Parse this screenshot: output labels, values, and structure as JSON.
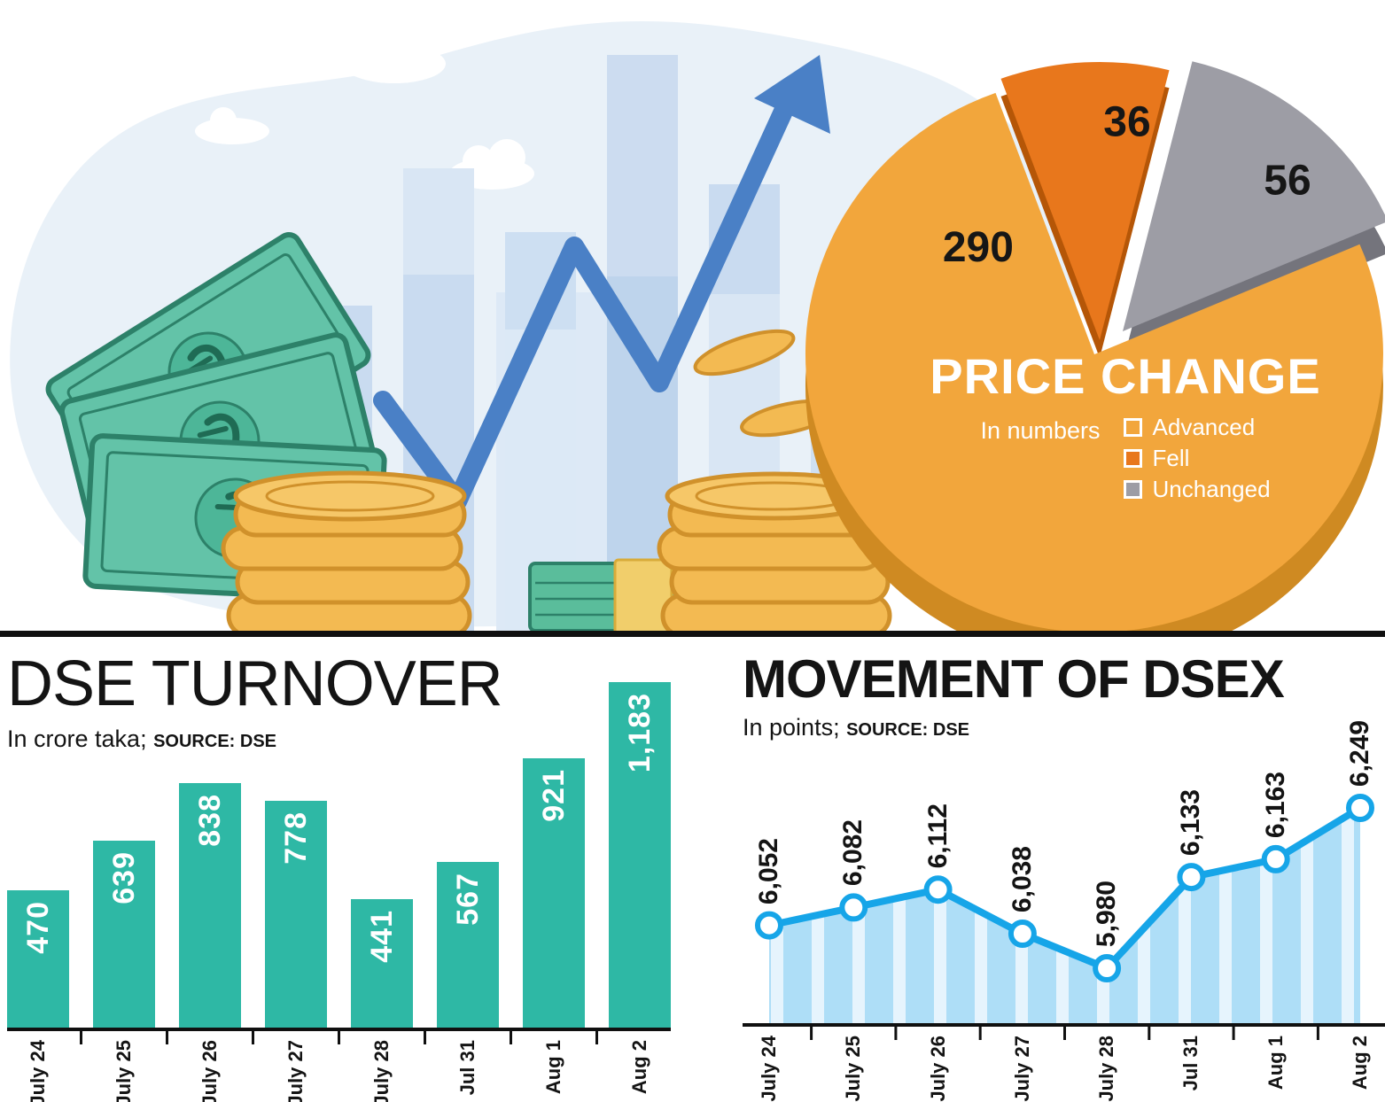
{
  "hero": {
    "illustration": "stock-market-growth",
    "currency_symbol": "৳"
  },
  "chart_data": [
    {
      "id": "price-change",
      "type": "pie",
      "title": "PRICE CHANGE",
      "subtitle": "In numbers",
      "labels": [
        "Advanced",
        "Fell",
        "Unchanged"
      ],
      "values": [
        290,
        36,
        56
      ],
      "value_labels": [
        "290",
        "36",
        "56"
      ],
      "colors": [
        "#f2a63c",
        "#e8771c",
        "#9d9da5"
      ],
      "legend_position": "on-chart"
    },
    {
      "id": "dse-turnover",
      "type": "bar",
      "title": "DSE TURNOVER",
      "subtitle": "In crore taka;",
      "source": "SOURCE: DSE",
      "categories": [
        "July 24",
        "July 25",
        "July 26",
        "July 27",
        "July 28",
        "Jul 31",
        "Aug 1",
        "Aug 2"
      ],
      "values": [
        470,
        639,
        838,
        778,
        441,
        567,
        921,
        1183
      ],
      "value_labels": [
        "470",
        "639",
        "838",
        "778",
        "441",
        "567",
        "921",
        "1,183"
      ],
      "bar_color": "#2eb8a5",
      "ylim": [
        0,
        1183
      ],
      "grid": false,
      "legend_position": "none"
    },
    {
      "id": "movement-of-dsex",
      "type": "line",
      "title": "MOVEMENT OF DSEX",
      "subtitle": "In points;",
      "source": "SOURCE: DSE",
      "categories": [
        "July 24",
        "July 25",
        "July 26",
        "July 27",
        "July 28",
        "Jul 31",
        "Aug 1",
        "Aug 2"
      ],
      "values": [
        6052,
        6082,
        6112,
        6038,
        5980,
        6133,
        6163,
        6249
      ],
      "value_labels": [
        "6,052",
        "6,082",
        "6,112",
        "6,038",
        "5,980",
        "6,133",
        "6,163",
        "6,249"
      ],
      "line_color": "#16a5e8",
      "marker_fill": "#ffffff",
      "area_stripe_colors": [
        "#aedef7",
        "#e6f4fd"
      ],
      "ylim": [
        5900,
        6300
      ],
      "grid": false,
      "legend_position": "none"
    }
  ]
}
